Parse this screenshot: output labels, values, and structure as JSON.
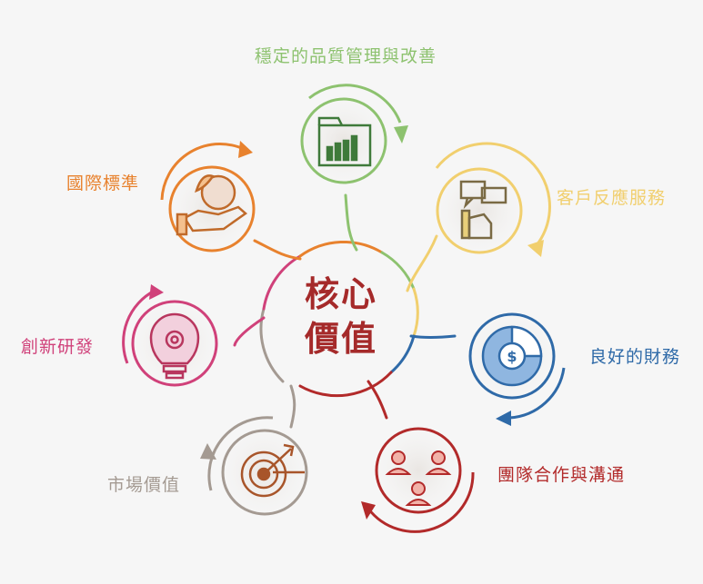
{
  "center": {
    "line1": "核心",
    "line2": "價值",
    "color": "#a52a2a"
  },
  "nodes": [
    {
      "label": "穩定的品質管理與改善",
      "icon": "folder-bar-chart-icon",
      "color": "#8dc26f"
    },
    {
      "label": "客戶反應服務",
      "icon": "feedback-speech-hand-icon",
      "color": "#f1cf6e"
    },
    {
      "label": "良好的財務",
      "icon": "dollar-pie-chart-icon",
      "color": "#2f6aa8"
    },
    {
      "label": "團隊合作與溝通",
      "icon": "team-people-icon",
      "color": "#b22a2a"
    },
    {
      "label": "市場價值",
      "icon": "target-arrow-icon",
      "color": "#a49a92"
    },
    {
      "label": "創新研發",
      "icon": "gear-lightbulb-icon",
      "color": "#d0417a"
    },
    {
      "label": "國際標準",
      "icon": "hand-globe-leaf-icon",
      "color": "#e8822e"
    }
  ]
}
